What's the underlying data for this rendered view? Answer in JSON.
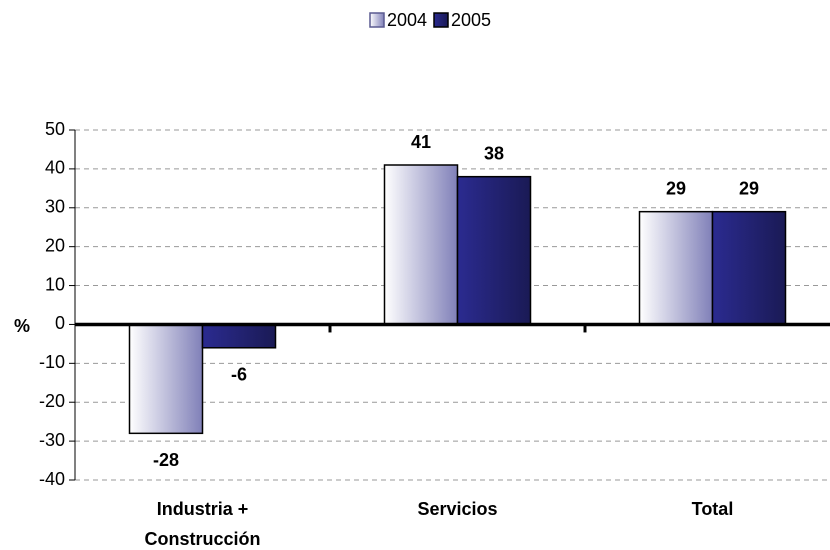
{
  "chart_data": {
    "type": "bar",
    "y_label": "%",
    "categories": [
      "Industria + Construcción",
      "Servicios",
      "Total"
    ],
    "series": [
      {
        "name": "2004",
        "color": "#8080b8",
        "values": [
          -28,
          41,
          29
        ]
      },
      {
        "name": "2005",
        "color": "#2b2b90",
        "values": [
          -6,
          38,
          29
        ]
      }
    ],
    "ylim": [
      -40,
      50
    ],
    "yticks": [
      -40,
      -30,
      -20,
      -10,
      0,
      10,
      20,
      30,
      40,
      50
    ],
    "grid": true,
    "legend": "top"
  }
}
